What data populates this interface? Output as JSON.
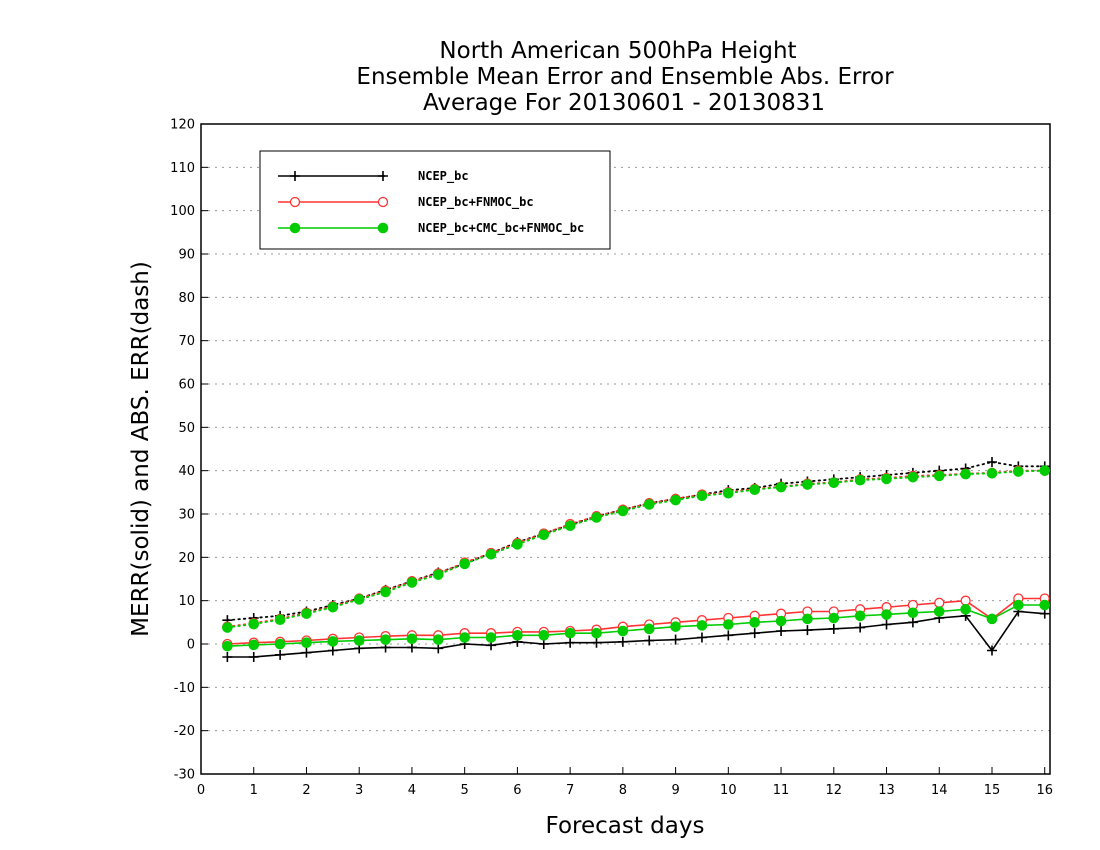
{
  "chart_data": {
    "type": "line",
    "title_lines": [
      "North American 500hPa Height",
      "Ensemble Mean Error and Ensemble Abs. Error",
      "Average For 20130601 - 20130831"
    ],
    "xlabel": "Forecast days",
    "ylabel": "MERR(solid) and ABS. ERR(dash)",
    "xlim": [
      0,
      16.1
    ],
    "ylim": [
      -30,
      120
    ],
    "xticks": [
      0,
      1,
      2,
      3,
      4,
      5,
      6,
      7,
      8,
      9,
      10,
      11,
      12,
      13,
      14,
      15,
      16
    ],
    "yticks": [
      -30,
      -20,
      -10,
      0,
      10,
      20,
      30,
      40,
      50,
      60,
      70,
      80,
      90,
      100,
      110,
      120
    ],
    "grid": "horizontal dotted",
    "legend_position": "top-left",
    "x": [
      0.5,
      1,
      1.5,
      2,
      2.5,
      3,
      3.5,
      4,
      4.5,
      5,
      5.5,
      6,
      6.5,
      7,
      7.5,
      8,
      8.5,
      9,
      9.5,
      10,
      10.5,
      11,
      11.5,
      12,
      12.5,
      13,
      13.5,
      14,
      14.5,
      15,
      15.5,
      16
    ],
    "series": [
      {
        "name": "NCEP_bc",
        "color": "#000000",
        "marker": "plus",
        "merr": [
          -3,
          -3,
          -2.5,
          -2,
          -1.5,
          -1,
          -0.8,
          -0.8,
          -1,
          0,
          -0.3,
          0.5,
          0,
          0.3,
          0.3,
          0.5,
          0.8,
          1,
          1.5,
          2,
          2.5,
          3,
          3.2,
          3.5,
          3.8,
          4.5,
          5,
          6,
          6.5,
          -1.5,
          7.5,
          7
        ],
        "abs_err": [
          5.5,
          6,
          6.5,
          7.5,
          9,
          10.5,
          12.5,
          14.5,
          16.5,
          18.5,
          21,
          23.5,
          25.5,
          27.5,
          29.5,
          31,
          32.5,
          33.5,
          34.5,
          35.5,
          36,
          37,
          37.5,
          38,
          38.5,
          39,
          39.5,
          40,
          40.5,
          42,
          41,
          41
        ]
      },
      {
        "name": "NCEP_bc+FNMOC_bc",
        "color": "#ff3333",
        "marker": "open-circle",
        "merr": [
          0,
          0.3,
          0.5,
          0.8,
          1.2,
          1.5,
          1.8,
          2,
          2,
          2.5,
          2.5,
          2.8,
          2.8,
          3,
          3.3,
          4,
          4.5,
          5,
          5.5,
          6,
          6.5,
          7,
          7.5,
          7.5,
          8,
          8.5,
          9,
          9.5,
          10,
          5.8,
          10.5,
          10.5
        ],
        "abs_err": [
          4,
          4.8,
          5.8,
          7.2,
          8.7,
          10.5,
          12.3,
          14.5,
          16.3,
          18.8,
          21,
          23.3,
          25.5,
          27.7,
          29.5,
          31,
          32.5,
          33.5,
          34.5,
          35,
          35.8,
          36.3,
          37,
          37.3,
          38,
          38.3,
          38.8,
          39,
          39.3,
          39.5,
          40,
          40
        ]
      },
      {
        "name": "NCEP_bc+CMC_bc+FNMOC_bc",
        "color": "#00cc00",
        "marker": "filled-circle",
        "merr": [
          -0.5,
          -0.2,
          0,
          0.3,
          0.6,
          0.8,
          1,
          1.2,
          1,
          1.5,
          1.5,
          2,
          2,
          2.5,
          2.5,
          3,
          3.5,
          4,
          4.3,
          4.5,
          5,
          5.3,
          5.8,
          6,
          6.5,
          6.8,
          7.2,
          7.5,
          8,
          5.8,
          9,
          9
        ],
        "abs_err": [
          3.8,
          4.6,
          5.6,
          7,
          8.5,
          10.3,
          12,
          14.2,
          16,
          18.5,
          20.7,
          23,
          25.2,
          27.3,
          29.2,
          30.7,
          32.2,
          33.2,
          34.2,
          34.8,
          35.6,
          36.2,
          36.8,
          37.2,
          37.8,
          38.1,
          38.5,
          38.8,
          39.2,
          39.4,
          39.8,
          40
        ]
      }
    ]
  }
}
